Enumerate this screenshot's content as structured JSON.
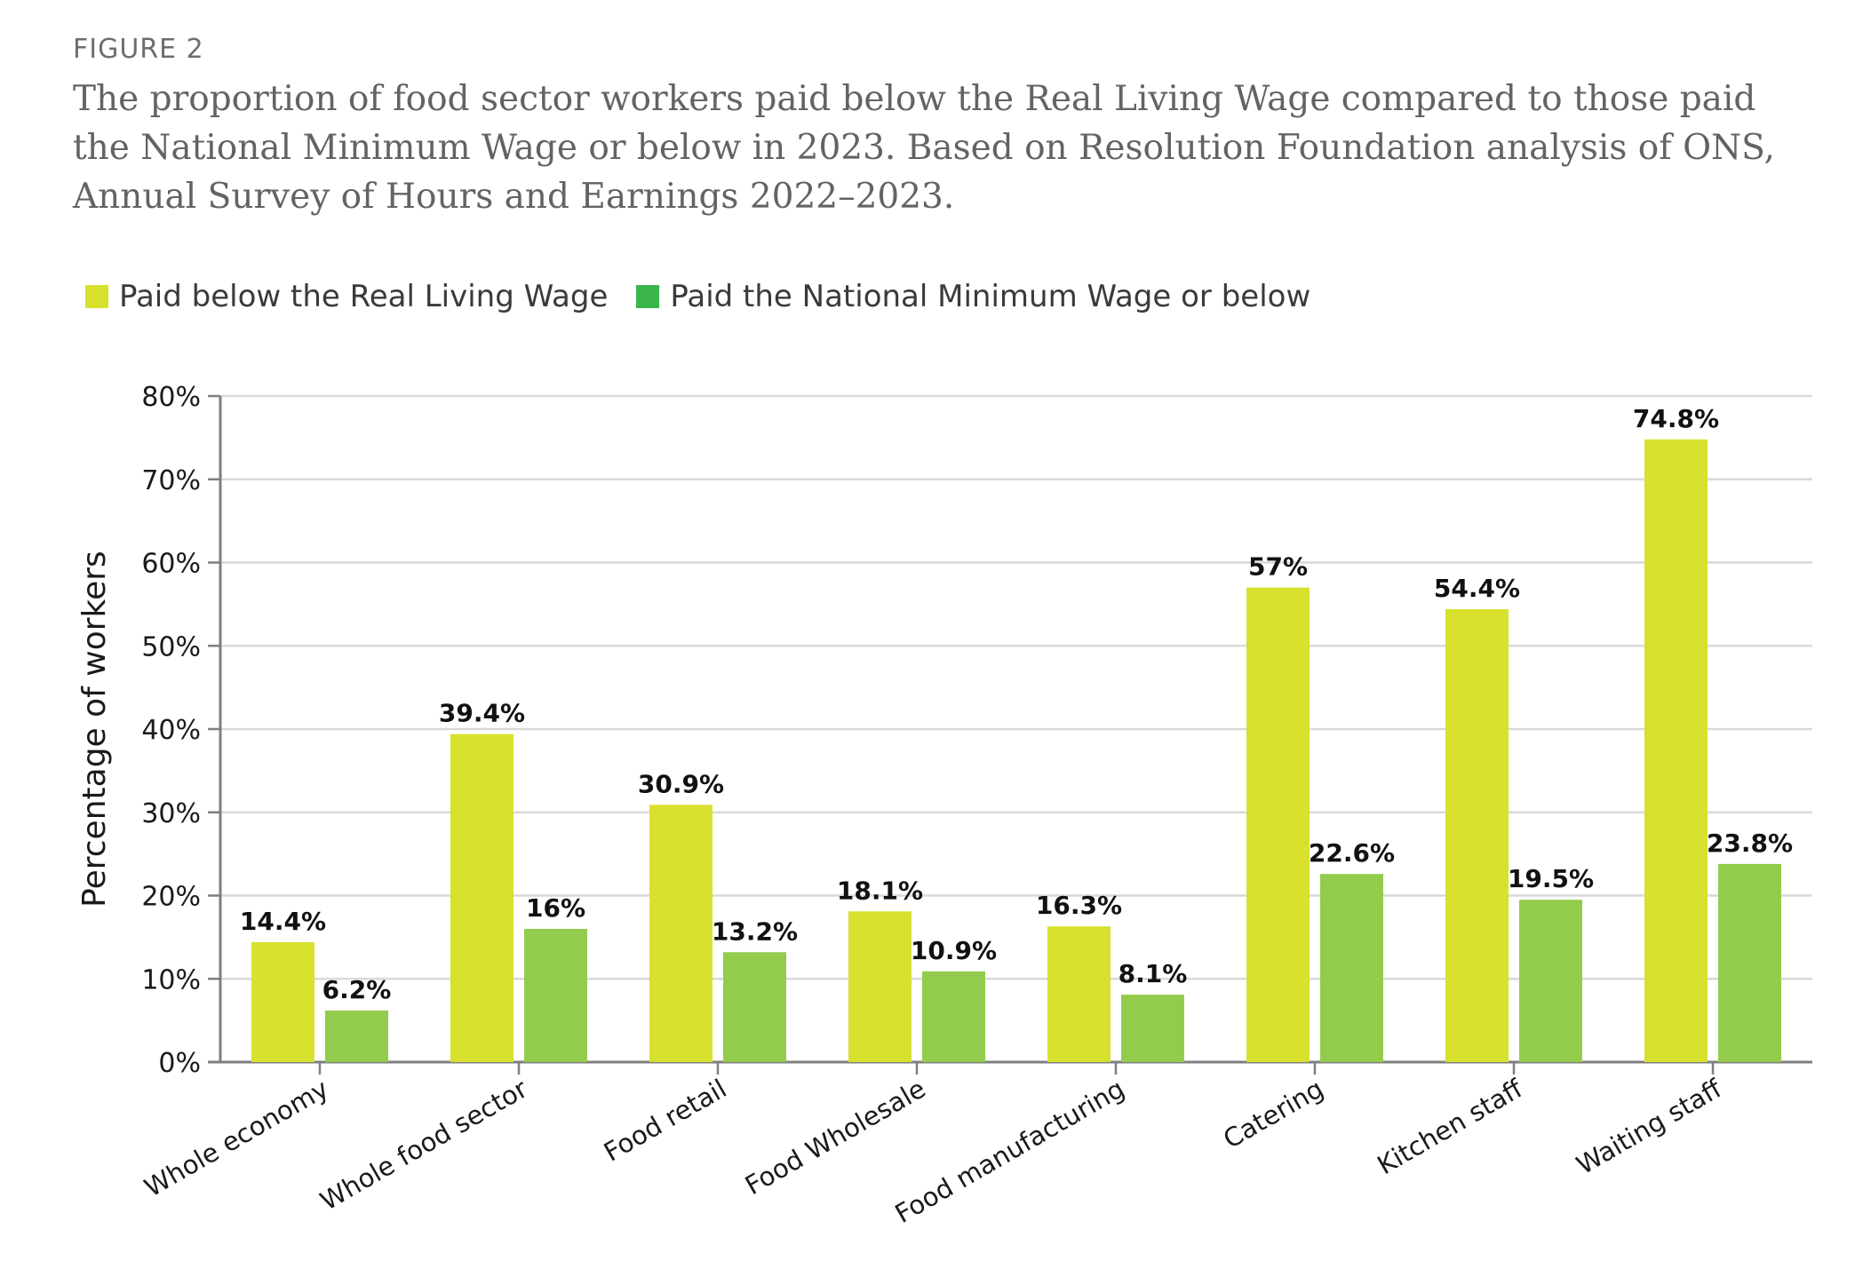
{
  "figure_label": "FIGURE 2",
  "title": "The proportion of food sector workers paid below the Real Living Wage compared to those paid the National Minimum Wage or below in 2023. Based on Resolution Foundation analysis of ONS, Annual Survey of Hours and Earnings 2022–2023.",
  "colors": {
    "series1": "#d7e12e",
    "series2": "#93cc4c",
    "legend_series2": "#3ab54a",
    "grid": "#d9d9d9",
    "axis": "#7f7f7f"
  },
  "legend": [
    {
      "label": "Paid below the Real Living Wage",
      "color": "#d7e12e"
    },
    {
      "label": "Paid the National Minimum Wage or below",
      "color": "#3ab54a"
    }
  ],
  "chart_data": {
    "type": "bar",
    "ylabel": "Percentage of workers",
    "xlabel": "",
    "ylim": [
      0,
      80
    ],
    "yticks": [
      0,
      10,
      20,
      30,
      40,
      50,
      60,
      70,
      80
    ],
    "ytick_labels": [
      "0%",
      "10%",
      "20%",
      "30%",
      "40%",
      "50%",
      "60%",
      "70%",
      "80%"
    ],
    "grid": true,
    "legend_position": "top-left",
    "categories": [
      "Whole economy",
      "Whole food sector",
      "Food retail",
      "Food Wholesale",
      "Food manufacturing",
      "Catering",
      "Kitchen staff",
      "Waiting staff"
    ],
    "series": [
      {
        "name": "Paid below the Real Living Wage",
        "values": [
          14.4,
          39.4,
          30.9,
          18.1,
          16.3,
          57,
          54.4,
          74.8
        ],
        "labels": [
          "14.4%",
          "39.4%",
          "30.9%",
          "18.1%",
          "16.3%",
          "57%",
          "54.4%",
          "74.8%"
        ]
      },
      {
        "name": "Paid the National Minimum Wage or below",
        "values": [
          6.2,
          16,
          13.2,
          10.9,
          8.1,
          22.6,
          19.5,
          23.8
        ],
        "labels": [
          "6.2%",
          "16%",
          "13.2%",
          "10.9%",
          "8.1%",
          "22.6%",
          "19.5%",
          "23.8%"
        ]
      }
    ]
  }
}
